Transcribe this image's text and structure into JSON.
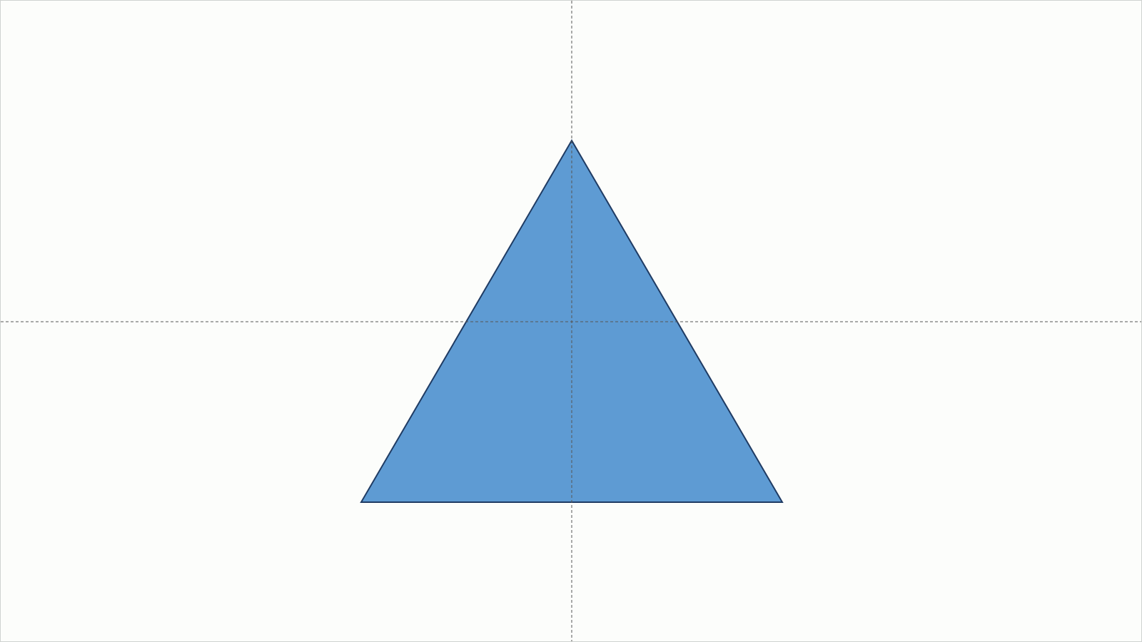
{
  "canvas": {
    "background_color": "#fcfdfb",
    "border_color": "#cfd2d0"
  },
  "guides": {
    "style": "dashed",
    "color": "#555555",
    "vertical": true,
    "horizontal": true
  },
  "shape": {
    "kind": "triangle",
    "icon": "triangle-shape",
    "fill_color": "#5e9bd3",
    "stroke_color": "#1f3b63",
    "selected": false
  }
}
